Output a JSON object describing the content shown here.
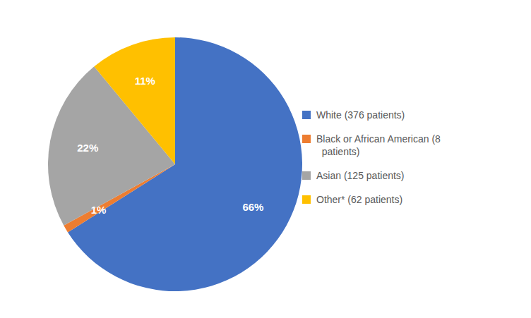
{
  "chart_data": {
    "type": "pie",
    "categories": [
      "White (376 patients)",
      "Black or African American (8\n  patients)",
      "Asian (125 patients)",
      "Other* (62 patients)"
    ],
    "values": [
      66,
      1,
      22,
      11
    ],
    "value_labels": [
      "66%",
      "1%",
      "22%",
      "11%"
    ],
    "colors": [
      "#4472C4",
      "#ED7D31",
      "#A5A5A5",
      "#FFC000"
    ],
    "data_labels": true,
    "legend": "right"
  }
}
